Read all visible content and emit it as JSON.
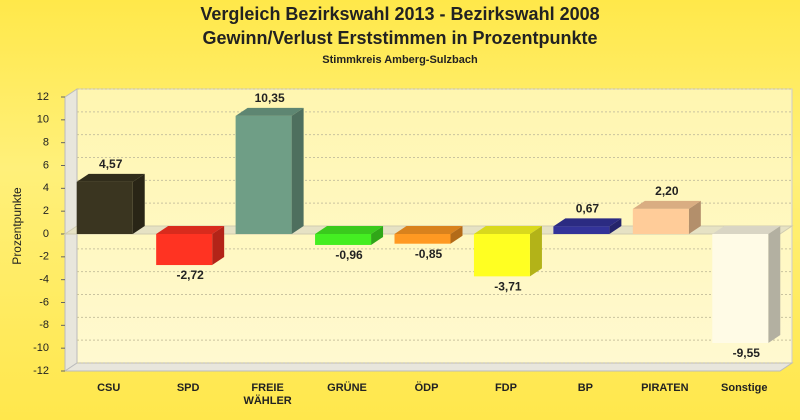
{
  "chart_data": {
    "type": "bar3d",
    "title": [
      "Vergleich Bezirkswahl 2013 - Bezirkswahl 2008",
      "Gewinn/Verlust Erststimmen in Prozentpunkte"
    ],
    "subtitle": "Stimmkreis Amberg-Sulzbach",
    "y_label": "Prozentpunkte",
    "categories": [
      "CSU",
      "SPD",
      "FREIE WÄHLER",
      "GRÜNE",
      "ÖDP",
      "FDP",
      "BP",
      "PIRATEN",
      "Sonstige"
    ],
    "values": [
      4.57,
      -2.72,
      10.35,
      -0.96,
      -0.85,
      -3.71,
      0.67,
      2.2,
      -9.55
    ],
    "value_labels": [
      "4,57",
      "-2,72",
      "10,35",
      "-0,96",
      "-0,85",
      "-3,71",
      "0,67",
      "2,20",
      "-9,55"
    ],
    "colors": [
      "#3a3520",
      "#ff3322",
      "#6f9e86",
      "#44ee22",
      "#ff9922",
      "#ffff22",
      "#333399",
      "#ffcc99",
      "#fffbe6"
    ],
    "ylim": [
      -12,
      12
    ],
    "yticks": [
      -12,
      -10,
      -8,
      -6,
      -4,
      -2,
      0,
      2,
      4,
      6,
      8,
      10,
      12
    ],
    "grid": true
  }
}
